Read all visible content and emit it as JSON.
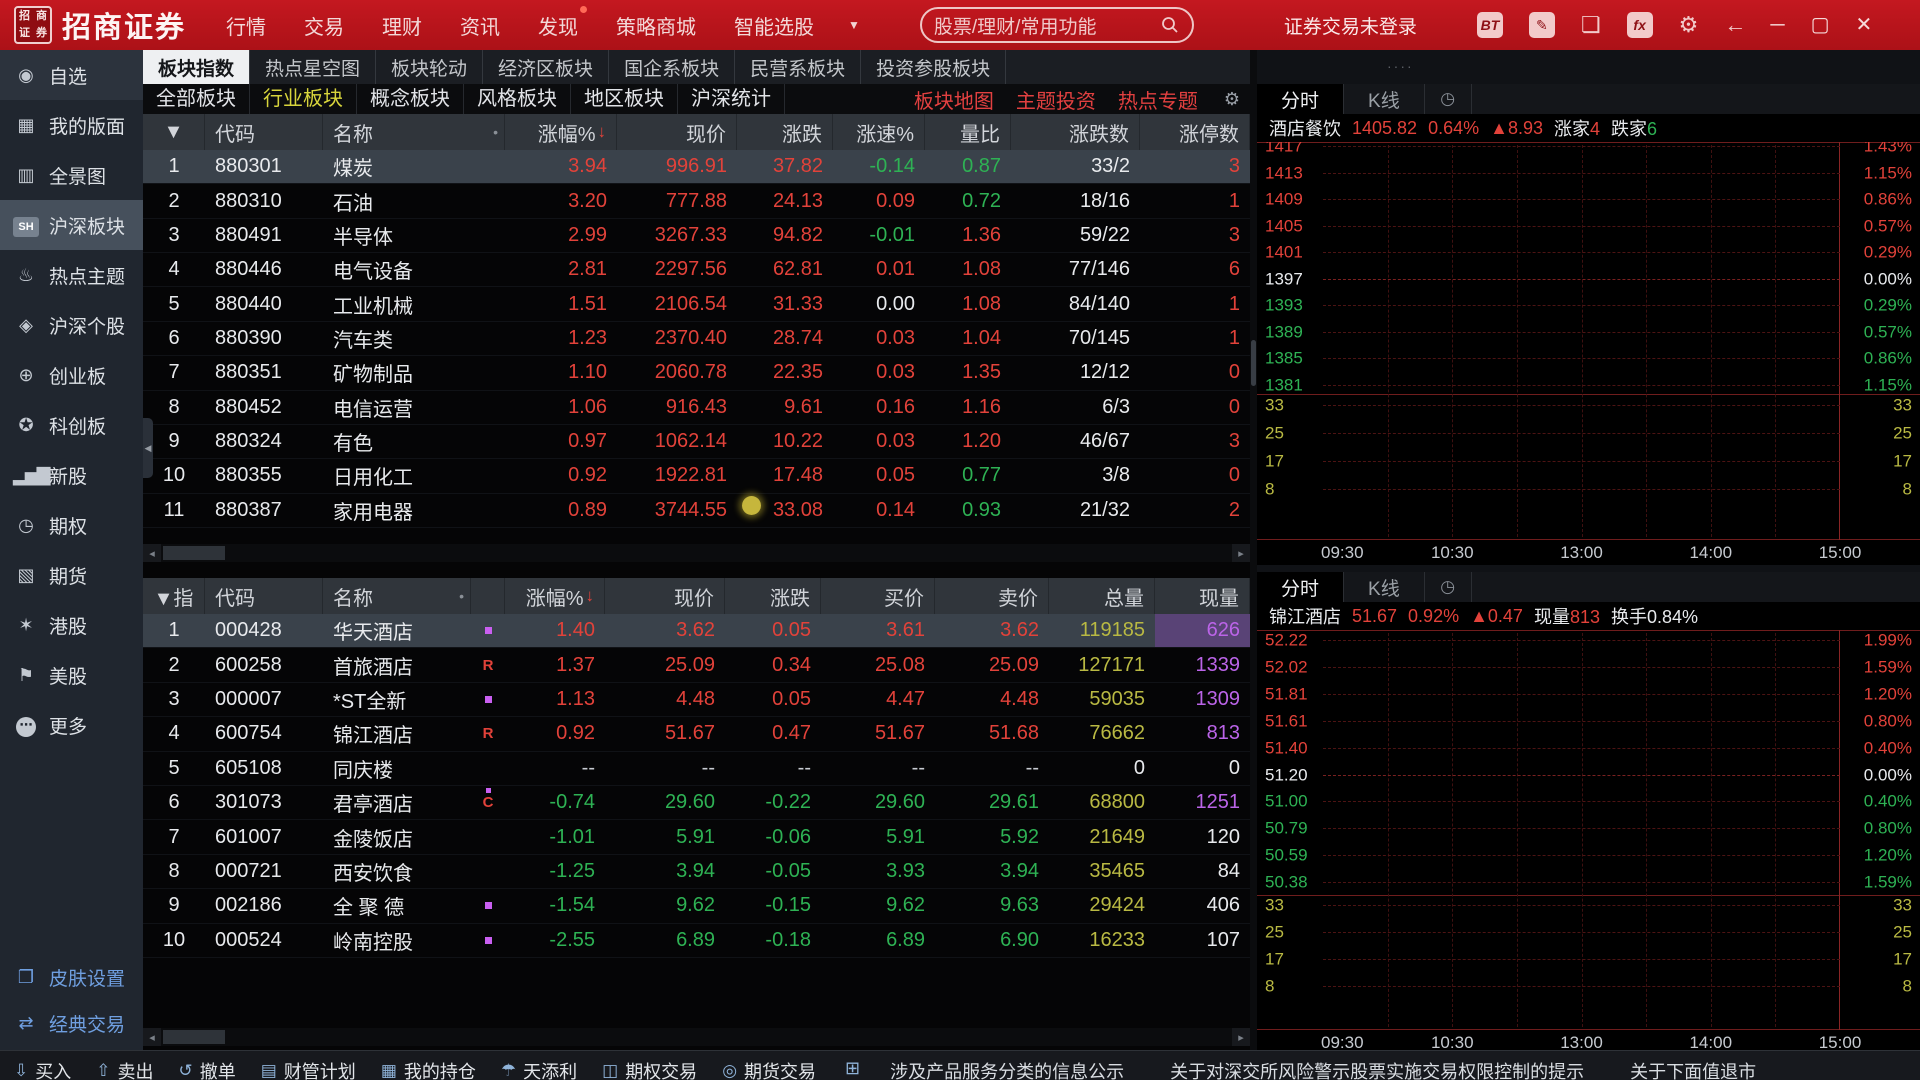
{
  "colors": {
    "up": "#e2423a",
    "down": "#2eb254",
    "volume": "#b9b943",
    "special": "#bb64e8",
    "accent_red": "#c41820",
    "tab_active_yellow": "#d8d53c"
  },
  "header": {
    "logo_seal": "招商证券",
    "brand": "招商证券",
    "menu": [
      {
        "label": "行情"
      },
      {
        "label": "交易"
      },
      {
        "label": "理财"
      },
      {
        "label": "资讯"
      },
      {
        "label": "发现",
        "badge": true
      },
      {
        "label": "策略商城"
      },
      {
        "label": "智能选股"
      }
    ],
    "caret": "▼",
    "search_placeholder": "股票/理财/常用功能",
    "login_status": "证券交易未登录",
    "app_icons": [
      {
        "icon": "BT",
        "boxed": true,
        "name": "bt-quote-icon"
      },
      {
        "icon": "✎",
        "boxed": true,
        "name": "edit-pencil-icon"
      },
      {
        "icon": "❏",
        "boxed": false,
        "name": "cube-icon"
      },
      {
        "icon": "fx",
        "boxed": true,
        "name": "fx-formula-icon"
      },
      {
        "icon": "⚙",
        "boxed": false,
        "name": "settings-gear-icon"
      },
      {
        "icon": "←",
        "boxed": false,
        "name": "back-arrow-icon"
      }
    ],
    "window_controls": [
      {
        "icon": "─",
        "name": "minimize-button"
      },
      {
        "icon": "▢",
        "name": "maximize-button"
      },
      {
        "icon": "✕",
        "name": "close-button"
      }
    ]
  },
  "sidebar": {
    "items": [
      {
        "icon": "◉",
        "label": "自选",
        "state": "hl"
      },
      {
        "icon": "▦",
        "label": "我的版面",
        "state": ""
      },
      {
        "icon": "▥",
        "label": "全景图",
        "state": ""
      },
      {
        "icon": "SH",
        "label": "沪深板块",
        "state": "active",
        "badge": true
      },
      {
        "icon": "♨",
        "label": "热点主题",
        "state": ""
      },
      {
        "icon": "◈",
        "label": "沪深个股",
        "state": ""
      },
      {
        "icon": "⊕",
        "label": "创业板",
        "state": ""
      },
      {
        "icon": "✪",
        "label": "科创板",
        "state": ""
      },
      {
        "icon": "▂▅▇",
        "label": "新股",
        "state": "",
        "bars": true
      },
      {
        "icon": "◷",
        "label": "期权",
        "state": ""
      },
      {
        "icon": "▧",
        "label": "期货",
        "state": ""
      },
      {
        "icon": "✶",
        "label": "港股",
        "state": ""
      },
      {
        "icon": "⚑",
        "label": "美股",
        "state": ""
      },
      {
        "icon": "⋯",
        "label": "更多",
        "state": "",
        "circ": true
      }
    ],
    "footer": [
      {
        "icon": "❐",
        "label": "皮肤设置"
      },
      {
        "icon": "⇄",
        "label": "经典交易"
      }
    ],
    "collapse_icon": "◀"
  },
  "main": {
    "tabs1": [
      "板块指数",
      "热点星空图",
      "板块轮动",
      "经济区板块",
      "国企系板块",
      "民营系板块",
      "投资参股板块"
    ],
    "tabs1_active": 0,
    "tabs2": [
      "全部板块",
      "行业板块",
      "概念板块",
      "风格板块",
      "地区板块",
      "沪深统计"
    ],
    "tabs2_active": 1,
    "red_links": [
      "板块地图",
      "主题投资",
      "热点专题"
    ],
    "gear_icon": "⚙",
    "table1": {
      "sel_header": "▼",
      "headers": [
        "代码",
        "名称",
        "涨幅%",
        "现价",
        "涨跌",
        "涨速%",
        "量比",
        "涨跌数",
        "涨停数"
      ],
      "sort_col": "涨幅%",
      "sort_arrow": "↓",
      "name_dot": "•",
      "rows": [
        {
          "num": "1",
          "code": "880301",
          "name": "煤炭",
          "sel": true,
          "cells": [
            [
              "3.94",
              "r"
            ],
            [
              "996.91",
              "r"
            ],
            [
              "37.82",
              "r"
            ],
            [
              "-0.14",
              "g"
            ],
            [
              "0.87",
              "g"
            ],
            [
              "33/2",
              "w"
            ],
            [
              "3",
              "r"
            ]
          ]
        },
        {
          "num": "2",
          "code": "880310",
          "name": "石油",
          "cells": [
            [
              "3.20",
              "r"
            ],
            [
              "777.88",
              "r"
            ],
            [
              "24.13",
              "r"
            ],
            [
              "0.09",
              "r"
            ],
            [
              "0.72",
              "g"
            ],
            [
              "18/16",
              "w"
            ],
            [
              "1",
              "r"
            ]
          ]
        },
        {
          "num": "3",
          "code": "880491",
          "name": "半导体",
          "cells": [
            [
              "2.99",
              "r"
            ],
            [
              "3267.33",
              "r"
            ],
            [
              "94.82",
              "r"
            ],
            [
              "-0.01",
              "g"
            ],
            [
              "1.36",
              "r"
            ],
            [
              "59/22",
              "w"
            ],
            [
              "3",
              "r"
            ]
          ]
        },
        {
          "num": "4",
          "code": "880446",
          "name": "电气设备",
          "cells": [
            [
              "2.81",
              "r"
            ],
            [
              "2297.56",
              "r"
            ],
            [
              "62.81",
              "r"
            ],
            [
              "0.01",
              "r"
            ],
            [
              "1.08",
              "r"
            ],
            [
              "77/146",
              "w"
            ],
            [
              "6",
              "r"
            ]
          ]
        },
        {
          "num": "5",
          "code": "880440",
          "name": "工业机械",
          "cells": [
            [
              "1.51",
              "r"
            ],
            [
              "2106.54",
              "r"
            ],
            [
              "31.33",
              "r"
            ],
            [
              "0.00",
              "w"
            ],
            [
              "1.08",
              "r"
            ],
            [
              "84/140",
              "w"
            ],
            [
              "1",
              "r"
            ]
          ]
        },
        {
          "num": "6",
          "code": "880390",
          "name": "汽车类",
          "cells": [
            [
              "1.23",
              "r"
            ],
            [
              "2370.40",
              "r"
            ],
            [
              "28.74",
              "r"
            ],
            [
              "0.03",
              "r"
            ],
            [
              "1.04",
              "r"
            ],
            [
              "70/145",
              "w"
            ],
            [
              "1",
              "r"
            ]
          ]
        },
        {
          "num": "7",
          "code": "880351",
          "name": "矿物制品",
          "cells": [
            [
              "1.10",
              "r"
            ],
            [
              "2060.78",
              "r"
            ],
            [
              "22.35",
              "r"
            ],
            [
              "0.03",
              "r"
            ],
            [
              "1.35",
              "r"
            ],
            [
              "12/12",
              "w"
            ],
            [
              "0",
              "r"
            ]
          ]
        },
        {
          "num": "8",
          "code": "880452",
          "name": "电信运营",
          "cells": [
            [
              "1.06",
              "r"
            ],
            [
              "916.43",
              "r"
            ],
            [
              "9.61",
              "r"
            ],
            [
              "0.16",
              "r"
            ],
            [
              "1.16",
              "r"
            ],
            [
              "6/3",
              "w"
            ],
            [
              "0",
              "r"
            ]
          ]
        },
        {
          "num": "9",
          "code": "880324",
          "name": "有色",
          "cells": [
            [
              "0.97",
              "r"
            ],
            [
              "1062.14",
              "r"
            ],
            [
              "10.22",
              "r"
            ],
            [
              "0.03",
              "r"
            ],
            [
              "1.20",
              "r"
            ],
            [
              "46/67",
              "w"
            ],
            [
              "3",
              "r"
            ]
          ]
        },
        {
          "num": "10",
          "code": "880355",
          "name": "日用化工",
          "cells": [
            [
              "0.92",
              "r"
            ],
            [
              "1922.81",
              "r"
            ],
            [
              "17.48",
              "r"
            ],
            [
              "0.05",
              "r"
            ],
            [
              "0.77",
              "g"
            ],
            [
              "3/8",
              "w"
            ],
            [
              "0",
              "r"
            ]
          ]
        },
        {
          "num": "11",
          "code": "880387",
          "name": "家用电器",
          "cells": [
            [
              "0.89",
              "r"
            ],
            [
              "3744.55",
              "r"
            ],
            [
              "33.08",
              "r"
            ],
            [
              "0.14",
              "r"
            ],
            [
              "0.93",
              "g"
            ],
            [
              "21/32",
              "w"
            ],
            [
              "2",
              "r"
            ]
          ]
        }
      ]
    },
    "table2": {
      "sel_header": "▼指",
      "headers": [
        "代码",
        "名称",
        "涨幅%",
        "现价",
        "涨跌",
        "买价",
        "卖价",
        "总量",
        "现量"
      ],
      "sort_col": "涨幅%",
      "sort_arrow": "↓",
      "name_dot": "•",
      "rows": [
        {
          "num": "1",
          "code": "000428",
          "name": "华天酒店",
          "mark": "pd",
          "sel": true,
          "cells": [
            [
              "1.40",
              "r"
            ],
            [
              "3.62",
              "r"
            ],
            [
              "0.05",
              "r"
            ],
            [
              "3.61",
              "r"
            ],
            [
              "3.62",
              "r"
            ],
            [
              "119185",
              "y"
            ],
            [
              "626",
              "p",
              "hl"
            ]
          ]
        },
        {
          "num": "2",
          "code": "600258",
          "name": "首旅酒店",
          "mark": "R",
          "cells": [
            [
              "1.37",
              "r"
            ],
            [
              "25.09",
              "r"
            ],
            [
              "0.34",
              "r"
            ],
            [
              "25.08",
              "r"
            ],
            [
              "25.09",
              "r"
            ],
            [
              "127171",
              "y"
            ],
            [
              "1339",
              "p"
            ]
          ]
        },
        {
          "num": "3",
          "code": "000007",
          "name": "*ST全新",
          "mark": "pd",
          "cells": [
            [
              "1.13",
              "r"
            ],
            [
              "4.48",
              "r"
            ],
            [
              "0.05",
              "r"
            ],
            [
              "4.47",
              "r"
            ],
            [
              "4.48",
              "r"
            ],
            [
              "59035",
              "y"
            ],
            [
              "1309",
              "p"
            ]
          ]
        },
        {
          "num": "4",
          "code": "600754",
          "name": "锦江酒店",
          "mark": "R",
          "cells": [
            [
              "0.92",
              "r"
            ],
            [
              "51.67",
              "r"
            ],
            [
              "0.47",
              "r"
            ],
            [
              "51.67",
              "r"
            ],
            [
              "51.68",
              "r"
            ],
            [
              "76662",
              "y"
            ],
            [
              "813",
              "p"
            ]
          ]
        },
        {
          "num": "5",
          "code": "605108",
          "name": "同庆楼",
          "mark": "",
          "cells": [
            [
              "--",
              "dim"
            ],
            [
              "--",
              "dim"
            ],
            [
              "--",
              "dim"
            ],
            [
              "--",
              "dim"
            ],
            [
              "--",
              "dim"
            ],
            [
              "0",
              "w"
            ],
            [
              "0",
              "w"
            ]
          ]
        },
        {
          "num": "6",
          "code": "301073",
          "name": "君亭酒店",
          "mark": "Cpd",
          "cells": [
            [
              "-0.74",
              "g"
            ],
            [
              "29.60",
              "g"
            ],
            [
              "-0.22",
              "g"
            ],
            [
              "29.60",
              "g"
            ],
            [
              "29.61",
              "g"
            ],
            [
              "68800",
              "y"
            ],
            [
              "1251",
              "p"
            ]
          ]
        },
        {
          "num": "7",
          "code": "601007",
          "name": "金陵饭店",
          "mark": "",
          "cells": [
            [
              "-1.01",
              "g"
            ],
            [
              "5.91",
              "g"
            ],
            [
              "-0.06",
              "g"
            ],
            [
              "5.91",
              "g"
            ],
            [
              "5.92",
              "g"
            ],
            [
              "21649",
              "y"
            ],
            [
              "120",
              "w"
            ]
          ]
        },
        {
          "num": "8",
          "code": "000721",
          "name": "西安饮食",
          "mark": "",
          "cells": [
            [
              "-1.25",
              "g"
            ],
            [
              "3.94",
              "g"
            ],
            [
              "-0.05",
              "g"
            ],
            [
              "3.93",
              "g"
            ],
            [
              "3.94",
              "g"
            ],
            [
              "35465",
              "y"
            ],
            [
              "84",
              "w"
            ]
          ]
        },
        {
          "num": "9",
          "code": "002186",
          "name": "全 聚 德",
          "mark": "pd",
          "cells": [
            [
              "-1.54",
              "g"
            ],
            [
              "9.62",
              "g"
            ],
            [
              "-0.15",
              "g"
            ],
            [
              "9.62",
              "g"
            ],
            [
              "9.63",
              "g"
            ],
            [
              "29424",
              "y"
            ],
            [
              "406",
              "w"
            ]
          ]
        },
        {
          "num": "10",
          "code": "000524",
          "name": "岭南控股",
          "mark": "pd",
          "cells": [
            [
              "-2.55",
              "g"
            ],
            [
              "6.89",
              "g"
            ],
            [
              "-0.18",
              "g"
            ],
            [
              "6.89",
              "g"
            ],
            [
              "6.90",
              "g"
            ],
            [
              "16233",
              "y"
            ],
            [
              "107",
              "w"
            ]
          ]
        }
      ]
    }
  },
  "charts": [
    {
      "tabs": [
        "分时",
        "K线"
      ],
      "active_tab": 0,
      "clock_icon": "◷",
      "name": "酒店餐饮",
      "price": "1405.82",
      "pct": "0.64%",
      "change": "▲8.93",
      "extras": [
        {
          "label": "涨家",
          "value": "4",
          "c": "r"
        },
        {
          "label": "跌家",
          "value": "6",
          "c": "g"
        }
      ],
      "left_axis": [
        "1417",
        "1413",
        "1409",
        "1405",
        "1401",
        "1397",
        "1393",
        "1389",
        "1385",
        "1381"
      ],
      "right_axis": [
        "1.43%",
        "1.15%",
        "0.86%",
        "0.57%",
        "0.29%",
        "0.00%",
        "0.29%",
        "0.57%",
        "0.86%",
        "1.15%"
      ],
      "mid_index": 5,
      "vol_axis": [
        "33",
        "25",
        "17",
        "8"
      ],
      "times": [
        "09:30",
        "10:30",
        "13:00",
        "14:00",
        "15:00"
      ]
    },
    {
      "tabs": [
        "分时",
        "K线"
      ],
      "active_tab": 0,
      "clock_icon": "◷",
      "name": "锦江酒店",
      "price": "51.67",
      "pct": "0.92%",
      "change": "▲0.47",
      "extras": [
        {
          "label": "现量",
          "value": "813",
          "c": "r"
        },
        {
          "label": "换手",
          "value": "0.84%",
          "c": "w"
        }
      ],
      "left_axis": [
        "52.22",
        "52.02",
        "51.81",
        "51.61",
        "51.40",
        "51.20",
        "51.00",
        "50.79",
        "50.59",
        "50.38"
      ],
      "right_axis": [
        "1.99%",
        "1.59%",
        "1.20%",
        "0.80%",
        "0.40%",
        "0.00%",
        "0.40%",
        "0.80%",
        "1.20%",
        "1.59%"
      ],
      "mid_index": 5,
      "vol_axis": [
        "33",
        "25",
        "17",
        "8"
      ],
      "times": [
        "09:30",
        "10:30",
        "13:00",
        "14:00",
        "15:00"
      ]
    }
  ],
  "strip_dots": "····",
  "scrollbar": {
    "left_arrow": "◂",
    "right_arrow": "▸"
  },
  "toolbar": {
    "items": [
      {
        "icon": "⇩",
        "label": "买入"
      },
      {
        "icon": "⇧",
        "label": "卖出"
      },
      {
        "icon": "↺",
        "label": "撤单"
      },
      {
        "icon": "▤",
        "label": "财管计划"
      },
      {
        "icon": "▦",
        "label": "我的持仓"
      },
      {
        "icon": "☂",
        "label": "天添利"
      },
      {
        "icon": "◫",
        "label": "期权交易"
      },
      {
        "icon": "◎",
        "label": "期货交易"
      }
    ],
    "plus_icon": "⊞",
    "notices": [
      "涉及产品服务分类的信息公示",
      "关于对深交所风险警示股票实施交易权限控制的提示",
      "关于下面值退市"
    ]
  }
}
